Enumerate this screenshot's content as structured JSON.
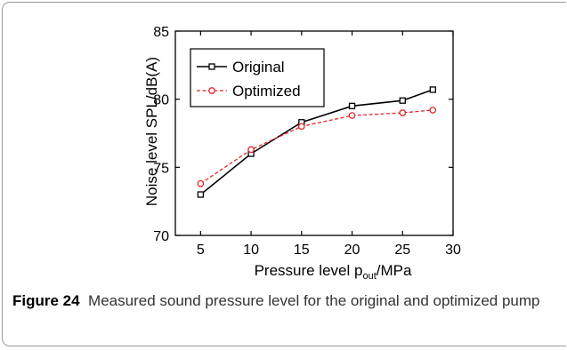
{
  "chart_data": {
    "type": "line",
    "xlabel_main": "Pressure level p",
    "xlabel_sub": "out",
    "xlabel_unit": "/MPa",
    "ylabel": "Noise level SPL/dB(A)",
    "xlim": [
      2.5,
      30
    ],
    "ylim": [
      70,
      85
    ],
    "xticks": [
      5,
      10,
      15,
      20,
      25,
      30
    ],
    "yticks": [
      70,
      75,
      80,
      85
    ],
    "legend_position": "top-left",
    "grid": false,
    "series": [
      {
        "name": "Original",
        "color": "#000000",
        "marker": "square",
        "style": "solid",
        "x": [
          5,
          10,
          15,
          20,
          25,
          28
        ],
        "y": [
          73.0,
          76.0,
          78.3,
          79.5,
          79.9,
          80.7
        ]
      },
      {
        "name": "Optimized",
        "color": "#e3262c",
        "marker": "circle",
        "style": "dashed",
        "x": [
          5,
          10,
          15,
          20,
          25,
          28
        ],
        "y": [
          73.8,
          76.3,
          78.0,
          78.8,
          79.0,
          79.2
        ]
      }
    ]
  },
  "caption": {
    "label": "Figure 24",
    "text": "Measured sound pressure level for the original and optimized pump"
  }
}
